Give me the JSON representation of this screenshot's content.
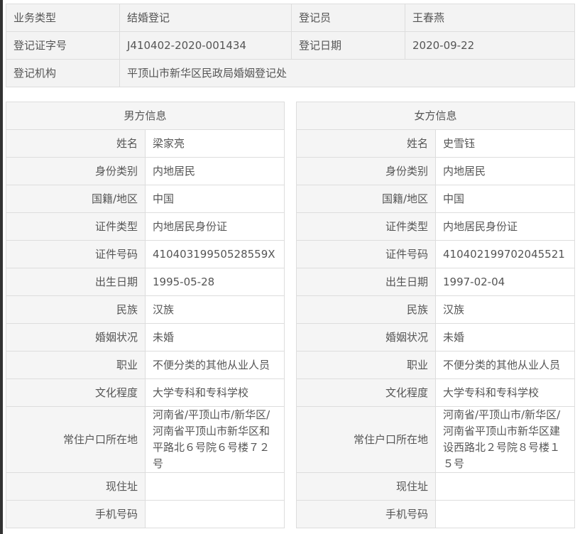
{
  "summary": {
    "rows": [
      [
        {
          "label": "业务类型",
          "value": "结婚登记"
        },
        {
          "label": "登记员",
          "value": "王春燕"
        }
      ],
      [
        {
          "label": "登记证字号",
          "value": "J410402-2020-001434"
        },
        {
          "label": "登记日期",
          "value": "2020-09-22"
        }
      ]
    ],
    "agency_label": "登记机构",
    "agency_value": "平顶山市新华区民政局婚姻登记处"
  },
  "labels": [
    "姓名",
    "身份类别",
    "国籍/地区",
    "证件类型",
    "证件号码",
    "出生日期",
    "民族",
    "婚姻状况",
    "职业",
    "文化程度",
    "常住户口所在地",
    "现住址",
    "手机号码"
  ],
  "male": {
    "title": "男方信息",
    "values": [
      "梁家亮",
      "内地居民",
      "中国",
      "内地居民身份证",
      "41040319950528559X",
      "1995-05-28",
      "汉族",
      "未婚",
      "不便分类的其他从业人员",
      "大学专科和专科学校",
      "河南省/平顶山市/新华区/河南省平顶山市新华区和平路北６号院６号楼７２号",
      "",
      ""
    ]
  },
  "female": {
    "title": "女方信息",
    "values": [
      "史雪钰",
      "内地居民",
      "中国",
      "内地居民身份证",
      "410402199702045521",
      "1997-02-04",
      "汉族",
      "未婚",
      "不便分类的其他从业人员",
      "大学专科和专科学校",
      "河南省/平顶山市/新华区/河南省平顶山市新华区建设西路北２号院８号楼１５号",
      "",
      ""
    ]
  }
}
